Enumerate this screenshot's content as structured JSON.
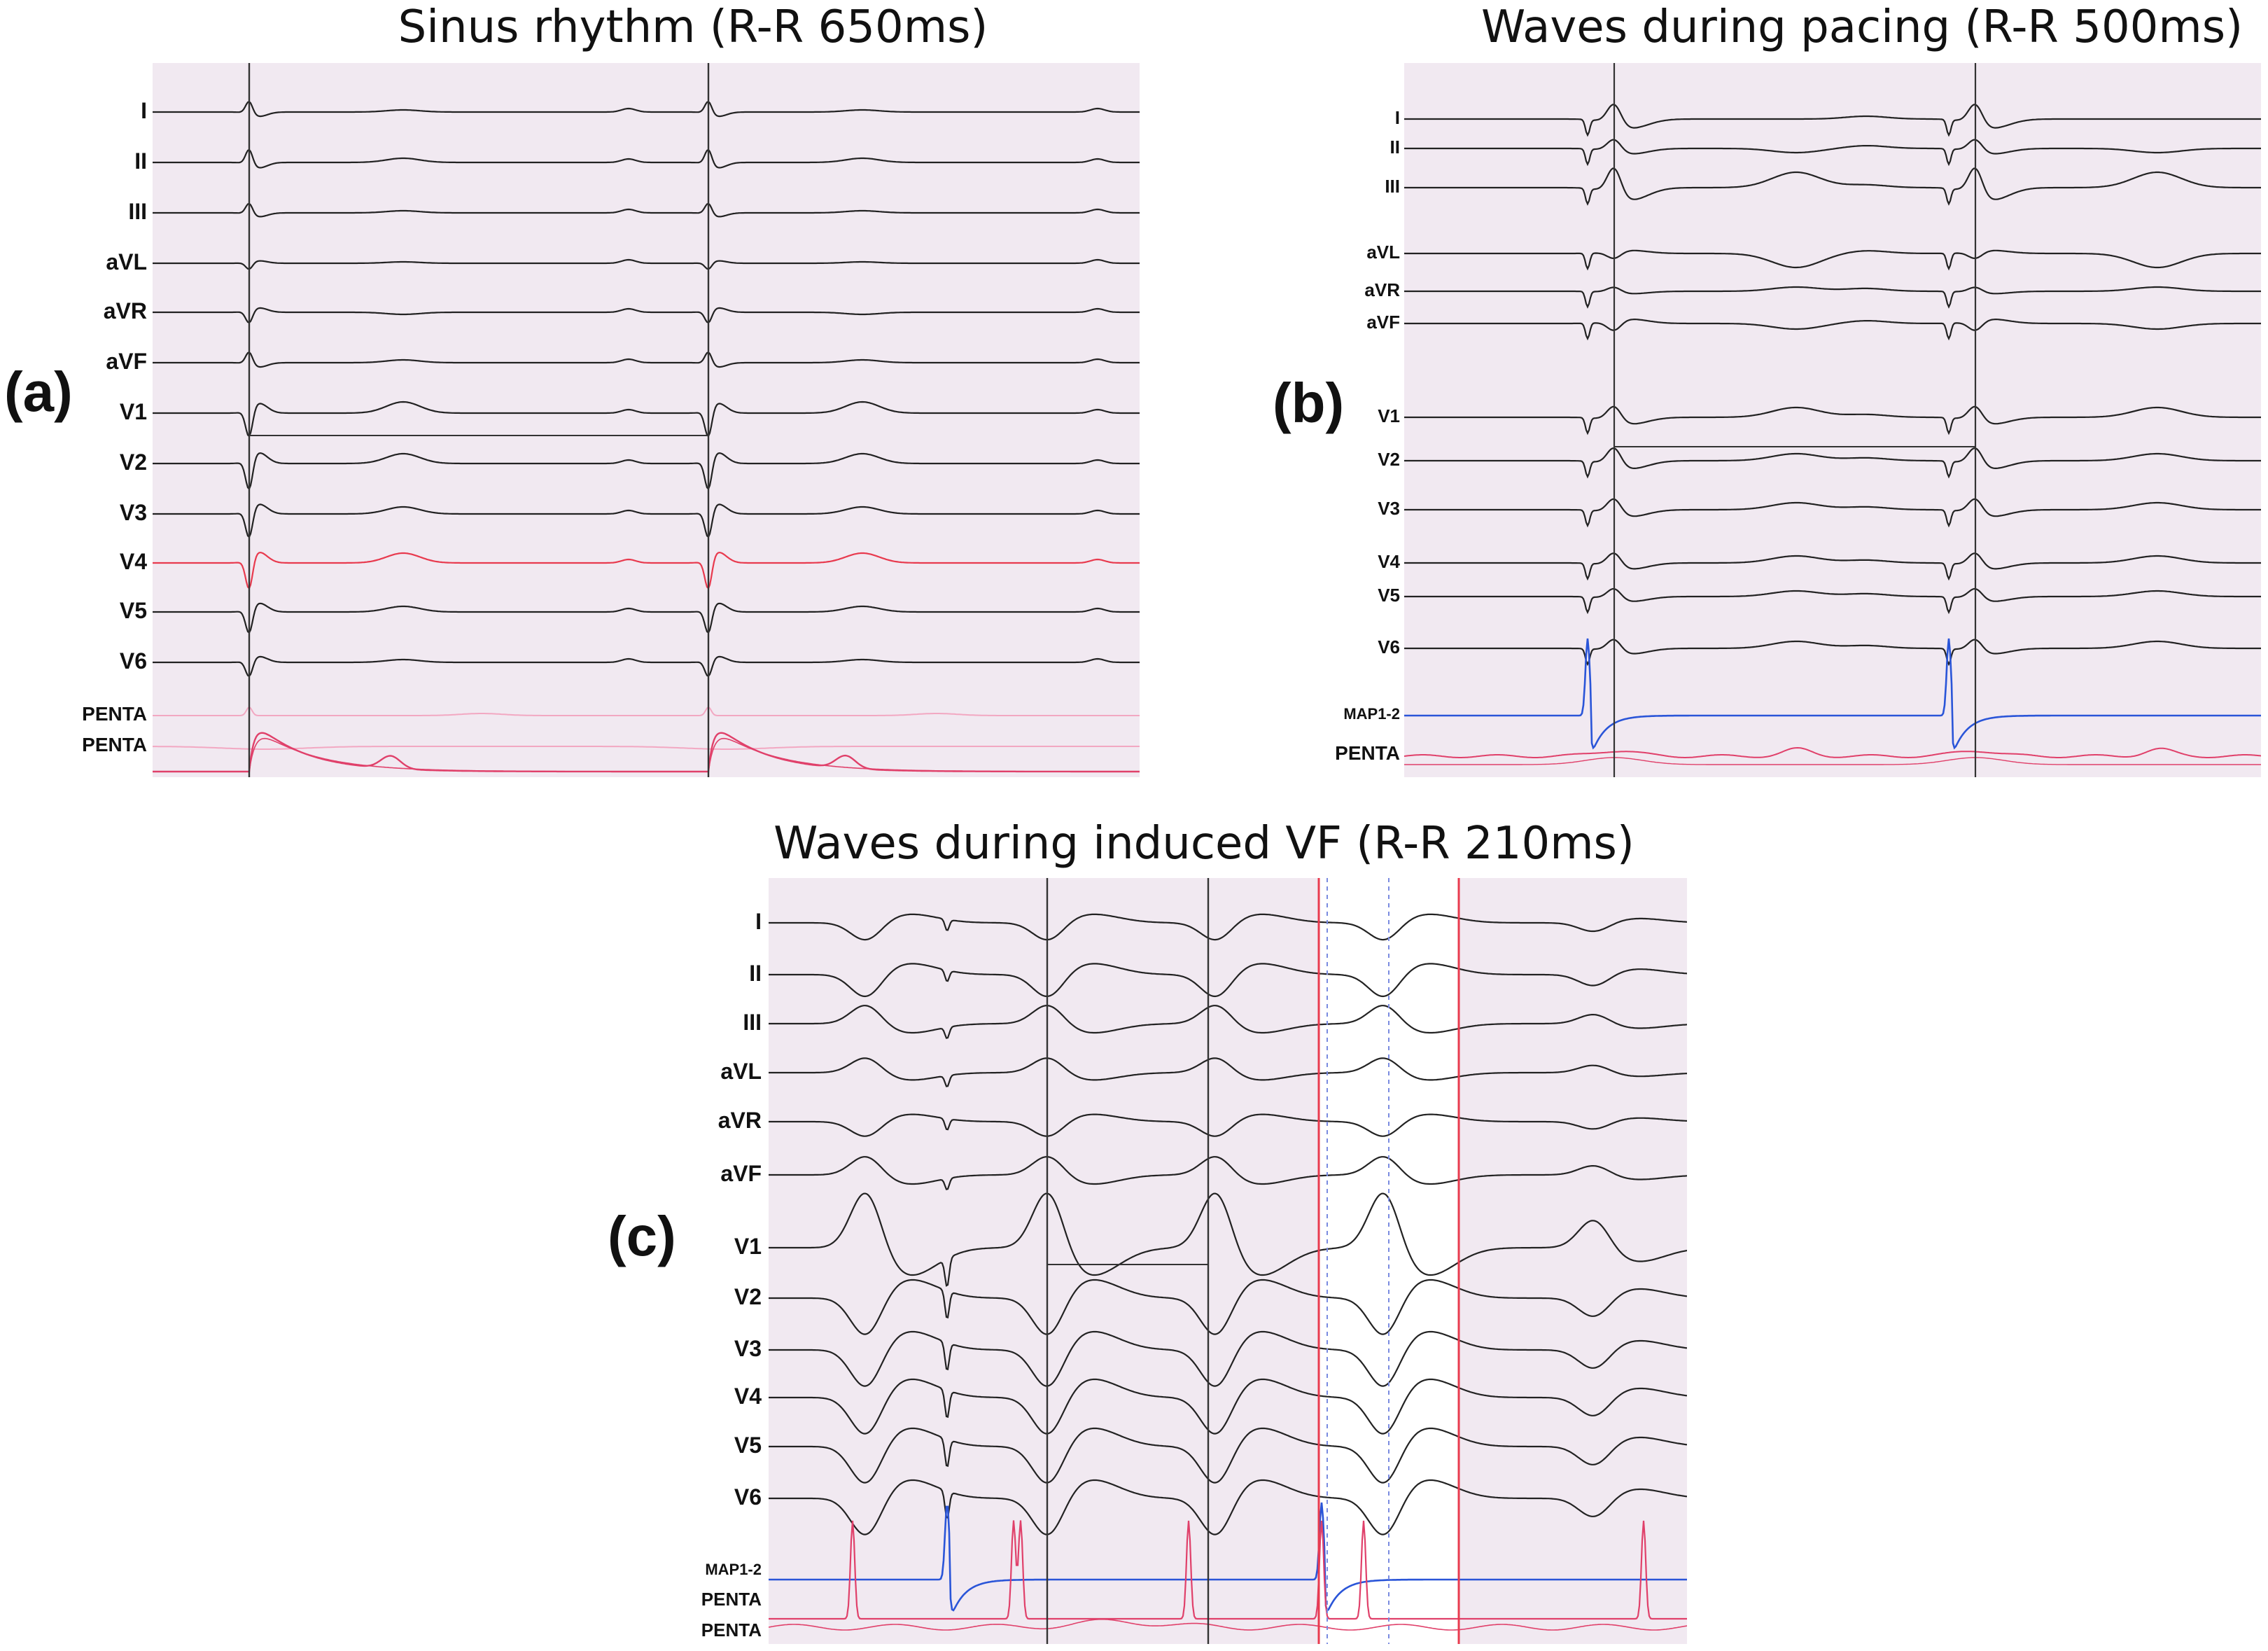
{
  "panels": {
    "a": {
      "label": "(a)",
      "title": "Sinus rhythm (R-R 650ms)",
      "leads": [
        "I",
        "II",
        "III",
        "aVL",
        "aVR",
        "aVF",
        "V1",
        "V2",
        "V3",
        "V4",
        "V5",
        "V6",
        "PENTA",
        "PENTA"
      ]
    },
    "b": {
      "label": "(b)",
      "title": "Waves during pacing (R-R 500ms)",
      "leads": [
        "I",
        "II",
        "III",
        "aVL",
        "aVR",
        "aVF",
        "V1",
        "V2",
        "V3",
        "V4",
        "V5",
        "V6",
        "MAP1-2",
        "PENTA"
      ]
    },
    "c": {
      "label": "(c)",
      "title": "Waves during induced VF (R-R 210ms)",
      "leads": [
        "I",
        "II",
        "III",
        "aVL",
        "aVR",
        "aVF",
        "V1",
        "V2",
        "V3",
        "V4",
        "V5",
        "V6",
        "MAP1-2",
        "PENTA",
        "PENTA"
      ]
    }
  },
  "colors": {
    "panel_bg": "#f1e9f1",
    "trace": "#222222",
    "highlight": "#e83a4e",
    "map": "#2a55d8",
    "penta": "#e0406a",
    "penta_light": "#f2a8c2"
  }
}
